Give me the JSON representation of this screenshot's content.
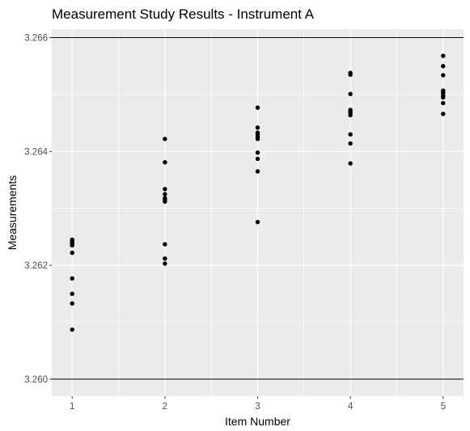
{
  "chart_data": {
    "type": "scatter",
    "title": "Measurement Study Results - Instrument A",
    "xlabel": "Item Number",
    "ylabel": "Measurements",
    "x_ticks": [
      "1",
      "2",
      "3",
      "4",
      "5"
    ],
    "y_ticks": [
      "3.260",
      "3.262",
      "3.264",
      "3.266"
    ],
    "xlim": [
      0.78,
      5.22
    ],
    "ylim": [
      3.2597,
      3.26615
    ],
    "reference_lines": [
      3.26,
      3.266
    ],
    "grid": true,
    "colors": {
      "panel": "#ebebeb",
      "grid": "#ffffff",
      "points": "#000000",
      "ref_line": "#000000"
    },
    "series": [
      {
        "x": [
          1,
          1,
          1,
          1,
          1,
          1,
          1,
          1,
          1,
          1,
          2,
          2,
          2,
          2,
          2,
          2,
          2,
          2,
          2,
          2,
          3,
          3,
          3,
          3,
          3,
          3,
          3,
          3,
          3,
          3,
          4,
          4,
          4,
          4,
          4,
          4,
          4,
          4,
          4,
          4,
          5,
          5,
          5,
          5,
          5,
          5,
          5,
          5,
          5,
          5
        ],
        "y": [
          3.26245,
          3.26242,
          3.26238,
          3.26235,
          3.26222,
          3.26177,
          3.2615,
          3.26133,
          3.26087,
          3.2624,
          3.26422,
          3.26381,
          3.26334,
          3.26325,
          3.26315,
          3.26312,
          3.26237,
          3.26212,
          3.26203,
          3.26318,
          3.26477,
          3.26442,
          3.26433,
          3.26422,
          3.26398,
          3.26387,
          3.26365,
          3.26276,
          3.2643,
          3.26425,
          3.26538,
          3.26535,
          3.26501,
          3.26473,
          3.26468,
          3.26464,
          3.2643,
          3.26414,
          3.26379,
          3.2647,
          3.26568,
          3.2655,
          3.26534,
          3.26507,
          3.26502,
          3.26495,
          3.26485,
          3.26466,
          3.26505,
          3.26498
        ]
      }
    ]
  }
}
